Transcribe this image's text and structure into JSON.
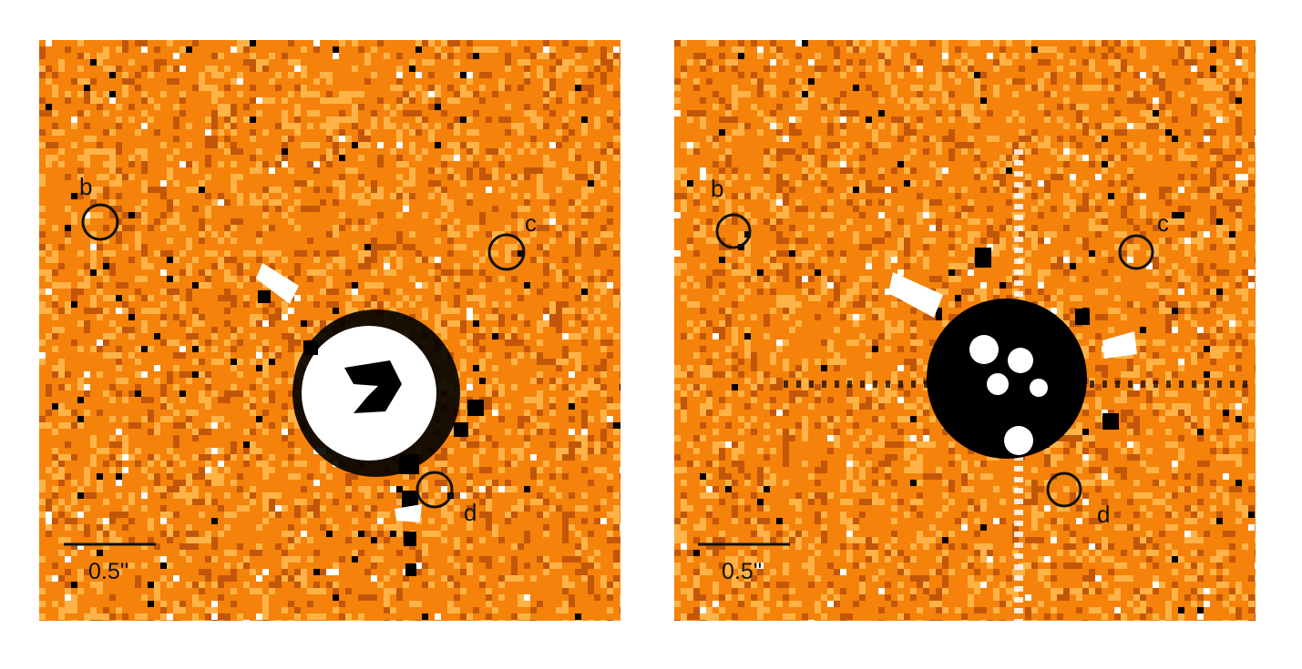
{
  "panels": [
    {
      "id": "left",
      "scalebar_label": "0.5''",
      "markers": [
        {
          "label": "b"
        },
        {
          "label": "c"
        },
        {
          "label": "d"
        }
      ]
    },
    {
      "id": "right",
      "scalebar_label": "0.5''",
      "markers": [
        {
          "label": "b"
        },
        {
          "label": "c"
        },
        {
          "label": "d"
        }
      ]
    }
  ],
  "colors": {
    "background": "#f5820a",
    "noise_light": "#ffb347",
    "noise_dark": "#c2570a",
    "residual_bright": "#ffffff",
    "residual_dark": "#000000",
    "marker": "#111111"
  }
}
